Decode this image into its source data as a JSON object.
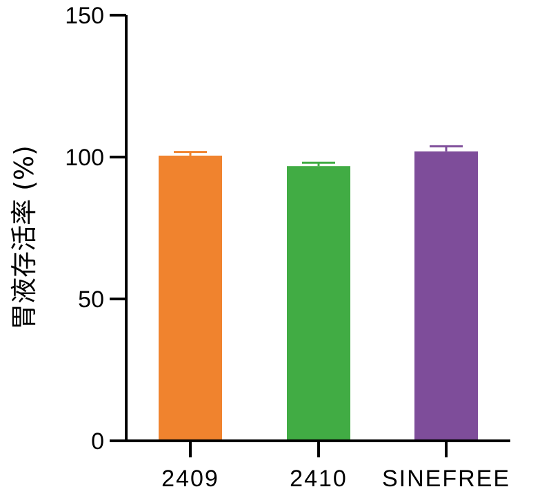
{
  "chart_data": {
    "type": "bar",
    "title": "",
    "xlabel": "",
    "ylabel": "胃液存活率 (%)",
    "ylim": [
      0,
      150
    ],
    "yticks": [
      0,
      50,
      100,
      150
    ],
    "categories": [
      "2409",
      "2410",
      "SINEFREE"
    ],
    "values": [
      100.5,
      96.8,
      102.0
    ],
    "errors": [
      1.3,
      1.2,
      1.8
    ],
    "colors": [
      "#F0832E",
      "#41AC44",
      "#7E4D9A"
    ],
    "grid": false,
    "legend": "none"
  }
}
